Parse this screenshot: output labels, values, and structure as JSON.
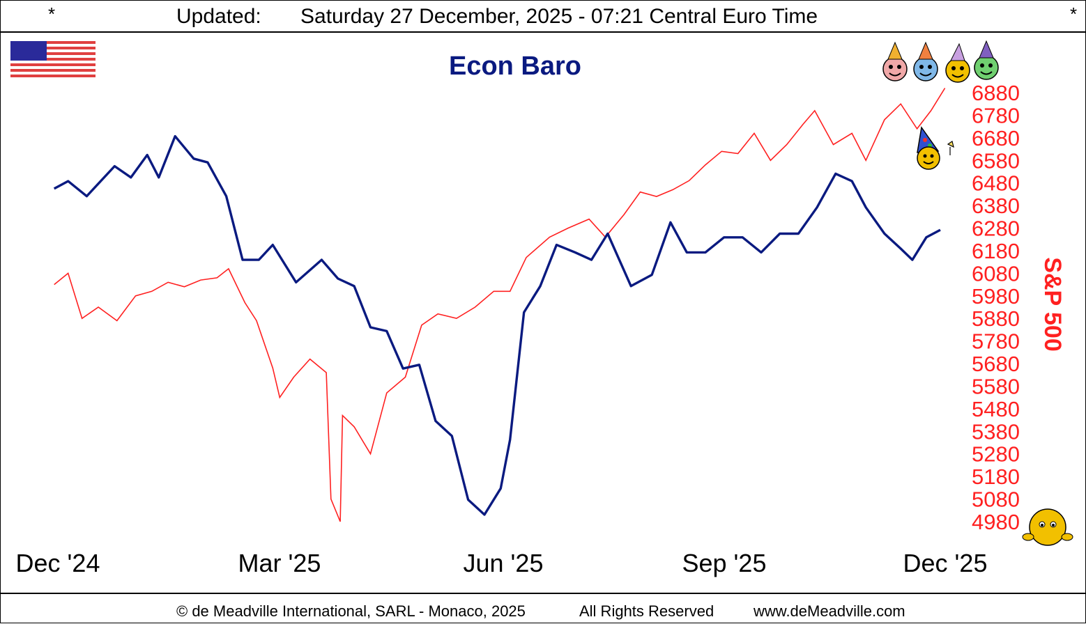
{
  "header": {
    "star_left": "*",
    "star_right": "*",
    "label": "Updated:",
    "timestamp": "Saturday 27 December, 2025 - 07:21 Central Euro Time"
  },
  "footer": {
    "copyright": "© de Meadville International, SARL - Monaco, 2025",
    "rights": "All Rights Reserved",
    "website": "www.deMeadville.com"
  },
  "colors": {
    "econ_baro": "#0a1a80",
    "sp500": "#ff2020",
    "title": "#0a1a80"
  },
  "icons": [
    "us-flag-icon",
    "party-smiley-icons",
    "party-hat-smiley-icon",
    "peeking-smiley-icon"
  ],
  "chart_data": {
    "type": "line",
    "title": "Econ Baro",
    "y2label": "S&P 500",
    "x_ticks": [
      "Dec '24",
      "Mar '25",
      "Jun '25",
      "Sep '25",
      "Dec '25"
    ],
    "x_range": [
      "2024-12-01",
      "2025-12-31"
    ],
    "y2_ticks": [
      6880,
      6780,
      6680,
      6580,
      6480,
      6380,
      6280,
      6180,
      6080,
      5980,
      5880,
      5780,
      5680,
      5580,
      5480,
      5380,
      5280,
      5180,
      5080,
      4980
    ],
    "y2lim": [
      4980,
      6880
    ],
    "series": [
      {
        "name": "Econ Baro",
        "axis": "none",
        "x": [
          "2024-12-06",
          "2024-12-12",
          "2024-12-20",
          "2025-01-01",
          "2025-01-08",
          "2025-01-15",
          "2025-01-20",
          "2025-01-27",
          "2025-02-04",
          "2025-02-10",
          "2025-02-18",
          "2025-02-25",
          "2025-03-04",
          "2025-03-10",
          "2025-03-20",
          "2025-03-31",
          "2025-04-07",
          "2025-04-14",
          "2025-04-21",
          "2025-04-28",
          "2025-05-05",
          "2025-05-12",
          "2025-05-19",
          "2025-05-26",
          "2025-06-02",
          "2025-06-09",
          "2025-06-16",
          "2025-06-20",
          "2025-06-26",
          "2025-07-03",
          "2025-07-10",
          "2025-07-18",
          "2025-07-25",
          "2025-08-01",
          "2025-08-11",
          "2025-08-20",
          "2025-08-28",
          "2025-09-04",
          "2025-09-12",
          "2025-09-20",
          "2025-09-28",
          "2025-10-06",
          "2025-10-14",
          "2025-10-22",
          "2025-10-30",
          "2025-11-07",
          "2025-11-14",
          "2025-11-20",
          "2025-11-28",
          "2025-12-05",
          "2025-12-10",
          "2025-12-16",
          "2025-12-22"
        ],
        "values": [
          61,
          63,
          59,
          67,
          64,
          70,
          64,
          75,
          69,
          68,
          59,
          42,
          42,
          46,
          36,
          42,
          37,
          35,
          24,
          23,
          13,
          14,
          -1,
          -5,
          -22,
          -26,
          -19,
          -6,
          28,
          35,
          46,
          44,
          42,
          49,
          35,
          38,
          52,
          44,
          44,
          48,
          48,
          44,
          49,
          49,
          56,
          65,
          63,
          56,
          49,
          45,
          42,
          48,
          50
        ]
      },
      {
        "name": "S&P 500",
        "axis": "right",
        "x": [
          "2024-12-06",
          "2024-12-12",
          "2024-12-18",
          "2024-12-25",
          "2025-01-02",
          "2025-01-10",
          "2025-01-17",
          "2025-01-24",
          "2025-01-31",
          "2025-02-07",
          "2025-02-14",
          "2025-02-19",
          "2025-02-26",
          "2025-03-03",
          "2025-03-10",
          "2025-03-13",
          "2025-03-19",
          "2025-03-26",
          "2025-04-02",
          "2025-04-04",
          "2025-04-08",
          "2025-04-09",
          "2025-04-14",
          "2025-04-21",
          "2025-04-28",
          "2025-05-06",
          "2025-05-13",
          "2025-05-20",
          "2025-05-28",
          "2025-06-05",
          "2025-06-13",
          "2025-06-20",
          "2025-06-27",
          "2025-07-07",
          "2025-07-15",
          "2025-07-24",
          "2025-07-31",
          "2025-08-08",
          "2025-08-15",
          "2025-08-22",
          "2025-08-29",
          "2025-09-05",
          "2025-09-12",
          "2025-09-19",
          "2025-09-26",
          "2025-10-03",
          "2025-10-10",
          "2025-10-17",
          "2025-10-24",
          "2025-10-29",
          "2025-11-06",
          "2025-11-14",
          "2025-11-20",
          "2025-11-28",
          "2025-12-05",
          "2025-12-12",
          "2025-12-18",
          "2025-12-24"
        ],
        "values": [
          6030,
          6080,
          5880,
          5930,
          5870,
          5980,
          6000,
          6040,
          6020,
          6050,
          6060,
          6100,
          5950,
          5870,
          5660,
          5530,
          5620,
          5700,
          5640,
          5080,
          4980,
          5450,
          5400,
          5280,
          5550,
          5620,
          5850,
          5900,
          5880,
          5930,
          6000,
          6000,
          6150,
          6240,
          6280,
          6320,
          6240,
          6340,
          6440,
          6420,
          6450,
          6490,
          6560,
          6620,
          6610,
          6700,
          6580,
          6650,
          6740,
          6800,
          6650,
          6700,
          6580,
          6760,
          6830,
          6720,
          6800,
          6900
        ]
      }
    ]
  }
}
